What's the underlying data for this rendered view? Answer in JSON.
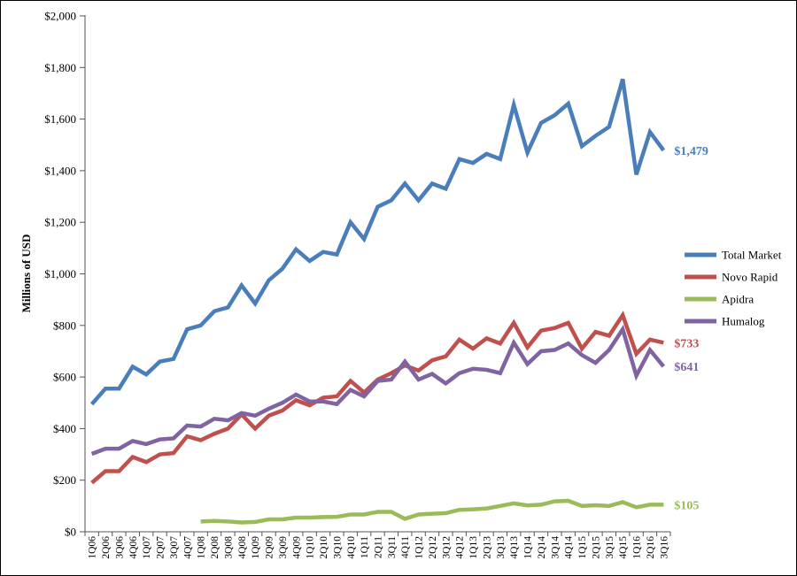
{
  "chart_data": {
    "type": "line",
    "ylabel": "Millions of USD",
    "ylim": [
      0,
      2000
    ],
    "y_ticks": [
      0,
      200,
      400,
      600,
      800,
      1000,
      1200,
      1400,
      1600,
      1800,
      2000
    ],
    "y_tick_labels": [
      "$0",
      "$200",
      "$400",
      "$600",
      "$800",
      "$1,000",
      "$1,200",
      "$1,400",
      "$1,600",
      "$1,800",
      "$2,000"
    ],
    "grid": false,
    "legend_position": "right",
    "categories": [
      "1Q06",
      "2Q06",
      "3Q06",
      "4Q06",
      "1Q07",
      "2Q07",
      "3Q07",
      "4Q07",
      "1Q08",
      "2Q08",
      "3Q08",
      "4Q08",
      "1Q09",
      "2Q09",
      "3Q09",
      "4Q09",
      "1Q10",
      "2Q10",
      "3Q10",
      "4Q10",
      "1Q11",
      "2Q11",
      "3Q11",
      "4Q11",
      "1Q12",
      "2Q12",
      "3Q12",
      "4Q12",
      "1Q13",
      "2Q13",
      "3Q13",
      "4Q13",
      "1Q14",
      "2Q14",
      "3Q14",
      "4Q14",
      "1Q15",
      "2Q15",
      "3Q15",
      "4Q15",
      "1Q16",
      "2Q16",
      "3Q16"
    ],
    "series": [
      {
        "name": "Total Market",
        "color": "#4a7ebb",
        "end_label": "$1,479",
        "values": [
          495,
          555,
          555,
          640,
          610,
          660,
          670,
          785,
          800,
          855,
          870,
          955,
          885,
          975,
          1020,
          1095,
          1050,
          1085,
          1075,
          1200,
          1135,
          1260,
          1285,
          1350,
          1285,
          1350,
          1330,
          1445,
          1430,
          1465,
          1445,
          1655,
          1470,
          1585,
          1615,
          1660,
          1495,
          1535,
          1570,
          1755,
          1385,
          1550,
          1479
        ]
      },
      {
        "name": "Novo Rapid",
        "color": "#c0504d",
        "end_label": "$733",
        "values": [
          190,
          235,
          235,
          290,
          270,
          300,
          305,
          370,
          355,
          380,
          400,
          455,
          400,
          450,
          470,
          510,
          490,
          520,
          525,
          585,
          540,
          590,
          615,
          645,
          625,
          665,
          680,
          745,
          710,
          750,
          730,
          810,
          715,
          780,
          790,
          810,
          710,
          775,
          760,
          840,
          690,
          745,
          733
        ]
      },
      {
        "name": "Apidra",
        "color": "#9bbb59",
        "end_label": "$105",
        "values": [
          null,
          null,
          null,
          null,
          null,
          null,
          null,
          null,
          40,
          42,
          40,
          36,
          38,
          48,
          48,
          55,
          55,
          57,
          58,
          67,
          67,
          77,
          77,
          50,
          67,
          70,
          72,
          85,
          87,
          90,
          100,
          110,
          102,
          105,
          118,
          120,
          100,
          103,
          100,
          115,
          95,
          105,
          105
        ]
      },
      {
        "name": "Humalog",
        "color": "#8064a2",
        "end_label": "$641",
        "values": [
          302,
          322,
          322,
          352,
          340,
          358,
          362,
          412,
          408,
          438,
          432,
          460,
          450,
          477,
          500,
          532,
          505,
          505,
          495,
          550,
          525,
          585,
          590,
          660,
          590,
          612,
          575,
          615,
          632,
          628,
          615,
          733,
          650,
          700,
          705,
          730,
          685,
          655,
          705,
          785,
          605,
          705,
          641
        ]
      }
    ]
  }
}
